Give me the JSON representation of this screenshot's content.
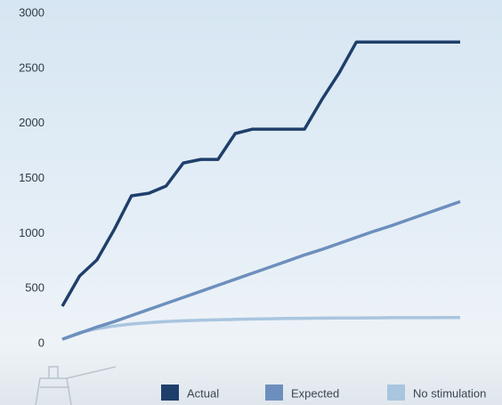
{
  "chart_data": {
    "type": "line",
    "series": [
      {
        "name": "Actual",
        "color": "#1f3f6b",
        "values": [
          340,
          614,
          760,
          1035,
          1342,
          1366,
          1431,
          1641,
          1673,
          1673,
          1908,
          1948,
          1948,
          1948,
          1948,
          2215,
          2458,
          2740,
          2740,
          2740,
          2740,
          2740,
          2740,
          2740
        ]
      },
      {
        "name": "Expected",
        "color": "#6d8fbd",
        "values": [
          40,
          95,
          150,
          200,
          255,
          310,
          365,
          420,
          475,
          530,
          585,
          640,
          695,
          750,
          805,
          855,
          910,
          965,
          1020,
          1070,
          1125,
          1180,
          1235,
          1290
        ]
      },
      {
        "name": "No stimulation",
        "color": "#a9c5df",
        "values": [
          40,
          100,
          135,
          160,
          178,
          190,
          200,
          207,
          212,
          216,
          220,
          223,
          226,
          228,
          230,
          231,
          232,
          233,
          234,
          235,
          235,
          235,
          236,
          236
        ]
      }
    ],
    "ylim": [
      0,
      3000
    ],
    "yticks": [
      0,
      500,
      1000,
      1500,
      2000,
      2500,
      3000
    ],
    "grid": false
  }
}
